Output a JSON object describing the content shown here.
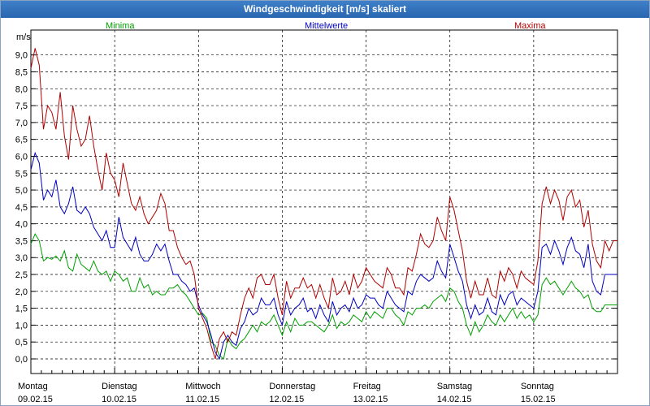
{
  "window": {
    "title": "Windgeschwindigkeit [m/s] skaliert"
  },
  "chart_data": {
    "type": "line",
    "title": "Windgeschwindigkeit [m/s] skaliert",
    "ylabel": "m/s",
    "xlabel": "",
    "ylim": [
      -0.2,
      9.5
    ],
    "xlim": [
      0,
      7
    ],
    "grid": true,
    "legend_position": "top",
    "yticks": [
      "0,0",
      "0,5",
      "1,0",
      "1,5",
      "2,0",
      "2,5",
      "3,0",
      "3,5",
      "4,0",
      "4,5",
      "5,0",
      "5,5",
      "6,0",
      "6,5",
      "7,0",
      "7,5",
      "8,0",
      "8,5",
      "9,0"
    ],
    "days": [
      {
        "name": "Montag",
        "date": "09.02.15"
      },
      {
        "name": "Dienstag",
        "date": "10.02.15"
      },
      {
        "name": "Mittwoch",
        "date": "11.02.15"
      },
      {
        "name": "Donnerstag",
        "date": "12.02.15"
      },
      {
        "name": "Freitag",
        "date": "13.02.15"
      },
      {
        "name": "Samstag",
        "date": "14.02.15"
      },
      {
        "name": "Sonntag",
        "date": "15.02.15"
      }
    ],
    "colors": {
      "minima": "#00a000",
      "mittel": "#0000c0",
      "maxima": "#b00000"
    },
    "series": [
      {
        "name": "Minima",
        "x": [
          0,
          0.05,
          0.1,
          0.15,
          0.2,
          0.25,
          0.3,
          0.35,
          0.4,
          0.45,
          0.5,
          0.55,
          0.6,
          0.65,
          0.7,
          0.75,
          0.8,
          0.85,
          0.9,
          0.95,
          1,
          1.05,
          1.1,
          1.15,
          1.2,
          1.25,
          1.3,
          1.35,
          1.4,
          1.45,
          1.5,
          1.55,
          1.6,
          1.65,
          1.7,
          1.75,
          1.8,
          1.85,
          1.9,
          1.95,
          2,
          2.05,
          2.1,
          2.15,
          2.2,
          2.25,
          2.3,
          2.35,
          2.4,
          2.45,
          2.5,
          2.55,
          2.6,
          2.65,
          2.7,
          2.75,
          2.8,
          2.85,
          2.9,
          2.95,
          3,
          3.05,
          3.1,
          3.15,
          3.2,
          3.25,
          3.3,
          3.35,
          3.4,
          3.45,
          3.5,
          3.55,
          3.6,
          3.65,
          3.7,
          3.75,
          3.8,
          3.85,
          3.9,
          3.95,
          4,
          4.05,
          4.1,
          4.15,
          4.2,
          4.25,
          4.3,
          4.35,
          4.4,
          4.45,
          4.5,
          4.55,
          4.6,
          4.65,
          4.7,
          4.75,
          4.8,
          4.85,
          4.9,
          4.95,
          5,
          5.05,
          5.1,
          5.15,
          5.2,
          5.25,
          5.3,
          5.35,
          5.4,
          5.45,
          5.5,
          5.55,
          5.6,
          5.65,
          5.7,
          5.75,
          5.8,
          5.85,
          5.9,
          5.95,
          6,
          6.05,
          6.1,
          6.15,
          6.2,
          6.25,
          6.3,
          6.35,
          6.4,
          6.45,
          6.5,
          6.55,
          6.6,
          6.65,
          6.7,
          6.75,
          6.8,
          6.85,
          6.9,
          6.95,
          7
        ],
        "values": [
          3.4,
          3.7,
          3.5,
          2.9,
          3.0,
          2.95,
          3.05,
          2.9,
          3.2,
          2.7,
          2.6,
          3.1,
          2.8,
          2.7,
          2.6,
          2.9,
          2.6,
          2.5,
          2.6,
          2.3,
          2.6,
          2.5,
          2.3,
          2.4,
          2.0,
          2.0,
          2.4,
          2.1,
          2.2,
          1.9,
          2.0,
          1.9,
          1.9,
          2.1,
          2.1,
          2.2,
          2.0,
          1.9,
          1.7,
          1.5,
          1.3,
          1.35,
          1.2,
          0.5,
          0.4,
          0.1,
          0.0,
          0.6,
          0.4,
          0.3,
          0.5,
          0.6,
          0.8,
          1.0,
          0.8,
          1.1,
          1.0,
          1.1,
          1.3,
          1.0,
          0.7,
          1.1,
          0.8,
          1.2,
          1.0,
          1.0,
          1.1,
          1.1,
          1.0,
          0.9,
          0.8,
          1.0,
          1.3,
          0.9,
          1.1,
          1.0,
          1.1,
          1.3,
          1.2,
          1.1,
          1.4,
          1.2,
          1.4,
          1.3,
          1.2,
          1.5,
          1.5,
          1.3,
          1.2,
          1.0,
          1.4,
          1.3,
          1.5,
          1.5,
          1.6,
          1.5,
          1.7,
          1.8,
          1.9,
          1.7,
          2.1,
          2.0,
          1.7,
          1.5,
          1.0,
          0.7,
          1.1,
          0.8,
          1.0,
          1.3,
          1.1,
          1.0,
          1.3,
          1.1,
          1.3,
          1.5,
          1.2,
          1.4,
          1.2,
          1.3,
          1.1,
          1.3,
          2.2,
          2.4,
          2.2,
          2.3,
          2.1,
          1.9,
          2.1,
          2.3,
          2.1,
          2.0,
          1.8,
          1.9,
          1.5,
          1.4,
          1.4,
          1.6,
          1.6,
          1.6,
          1.6
        ]
      },
      {
        "name": "Mittelwerte",
        "x": [
          0,
          0.05,
          0.1,
          0.15,
          0.2,
          0.25,
          0.3,
          0.35,
          0.4,
          0.45,
          0.5,
          0.55,
          0.6,
          0.65,
          0.7,
          0.75,
          0.8,
          0.85,
          0.9,
          0.95,
          1,
          1.05,
          1.1,
          1.15,
          1.2,
          1.25,
          1.3,
          1.35,
          1.4,
          1.45,
          1.5,
          1.55,
          1.6,
          1.65,
          1.7,
          1.75,
          1.8,
          1.85,
          1.9,
          1.95,
          2,
          2.05,
          2.1,
          2.15,
          2.2,
          2.25,
          2.3,
          2.35,
          2.4,
          2.45,
          2.5,
          2.55,
          2.6,
          2.65,
          2.7,
          2.75,
          2.8,
          2.85,
          2.9,
          2.95,
          3,
          3.05,
          3.1,
          3.15,
          3.2,
          3.25,
          3.3,
          3.35,
          3.4,
          3.45,
          3.5,
          3.55,
          3.6,
          3.65,
          3.7,
          3.75,
          3.8,
          3.85,
          3.9,
          3.95,
          4,
          4.05,
          4.1,
          4.15,
          4.2,
          4.25,
          4.3,
          4.35,
          4.4,
          4.45,
          4.5,
          4.55,
          4.6,
          4.65,
          4.7,
          4.75,
          4.8,
          4.85,
          4.9,
          4.95,
          5,
          5.05,
          5.1,
          5.15,
          5.2,
          5.25,
          5.3,
          5.35,
          5.4,
          5.45,
          5.5,
          5.55,
          5.6,
          5.65,
          5.7,
          5.75,
          5.8,
          5.85,
          5.9,
          5.95,
          6,
          6.05,
          6.1,
          6.15,
          6.2,
          6.25,
          6.3,
          6.35,
          6.4,
          6.45,
          6.5,
          6.55,
          6.6,
          6.65,
          6.7,
          6.75,
          6.8,
          6.85,
          6.9,
          6.95,
          7
        ],
        "values": [
          5.6,
          6.1,
          5.8,
          4.7,
          5.0,
          4.8,
          5.3,
          4.5,
          4.3,
          4.6,
          5.1,
          4.4,
          4.3,
          4.5,
          4.3,
          3.9,
          3.7,
          3.5,
          3.8,
          3.3,
          3.3,
          4.2,
          3.6,
          3.4,
          3.2,
          3.6,
          3.1,
          2.9,
          2.9,
          3.1,
          3.4,
          3.2,
          3.4,
          2.9,
          2.5,
          2.5,
          2.3,
          2.2,
          2.0,
          2.1,
          1.6,
          1.3,
          1.1,
          0.7,
          0.2,
          0.0,
          0.5,
          0.7,
          0.5,
          0.4,
          0.9,
          1.1,
          1.5,
          1.3,
          1.4,
          1.8,
          1.6,
          1.6,
          1.8,
          1.3,
          1.0,
          1.7,
          1.3,
          1.5,
          1.6,
          1.8,
          1.4,
          1.5,
          1.2,
          1.6,
          1.3,
          1.1,
          1.7,
          1.3,
          1.5,
          1.6,
          1.4,
          1.8,
          1.5,
          1.6,
          1.9,
          1.8,
          1.8,
          1.6,
          1.5,
          2.0,
          1.8,
          1.6,
          1.5,
          1.4,
          2.0,
          1.9,
          2.3,
          2.5,
          2.4,
          2.3,
          2.4,
          2.9,
          2.6,
          2.4,
          3.4,
          3.0,
          2.6,
          2.3,
          1.6,
          1.2,
          1.6,
          1.3,
          1.4,
          1.8,
          1.4,
          1.3,
          1.9,
          1.6,
          1.9,
          2.0,
          1.6,
          1.8,
          1.7,
          1.6,
          1.5,
          2.0,
          3.3,
          3.4,
          3.1,
          3.5,
          3.2,
          2.8,
          3.3,
          3.6,
          3.2,
          3.1,
          2.7,
          3.4,
          2.3,
          2.0,
          1.9,
          2.5,
          2.5,
          2.5,
          2.5
        ]
      },
      {
        "name": "Maxima",
        "x": [
          0,
          0.05,
          0.1,
          0.15,
          0.2,
          0.25,
          0.3,
          0.35,
          0.4,
          0.45,
          0.5,
          0.55,
          0.6,
          0.65,
          0.7,
          0.75,
          0.8,
          0.85,
          0.9,
          0.95,
          1,
          1.05,
          1.1,
          1.15,
          1.2,
          1.25,
          1.3,
          1.35,
          1.4,
          1.45,
          1.5,
          1.55,
          1.6,
          1.65,
          1.7,
          1.75,
          1.8,
          1.85,
          1.9,
          1.95,
          2,
          2.05,
          2.1,
          2.15,
          2.2,
          2.25,
          2.3,
          2.35,
          2.4,
          2.45,
          2.5,
          2.55,
          2.6,
          2.65,
          2.7,
          2.75,
          2.8,
          2.85,
          2.9,
          2.95,
          3,
          3.05,
          3.1,
          3.15,
          3.2,
          3.25,
          3.3,
          3.35,
          3.4,
          3.45,
          3.5,
          3.55,
          3.6,
          3.65,
          3.7,
          3.75,
          3.8,
          3.85,
          3.9,
          3.95,
          4,
          4.05,
          4.1,
          4.15,
          4.2,
          4.25,
          4.3,
          4.35,
          4.4,
          4.45,
          4.5,
          4.55,
          4.6,
          4.65,
          4.7,
          4.75,
          4.8,
          4.85,
          4.9,
          4.95,
          5,
          5.05,
          5.1,
          5.15,
          5.2,
          5.25,
          5.3,
          5.35,
          5.4,
          5.45,
          5.5,
          5.55,
          5.6,
          5.65,
          5.7,
          5.75,
          5.8,
          5.85,
          5.9,
          5.95,
          6,
          6.05,
          6.1,
          6.15,
          6.2,
          6.25,
          6.3,
          6.35,
          6.4,
          6.45,
          6.5,
          6.55,
          6.6,
          6.65,
          6.7,
          6.75,
          6.8,
          6.85,
          6.9,
          6.95,
          7
        ],
        "values": [
          8.6,
          9.2,
          8.7,
          6.8,
          7.5,
          7.3,
          6.8,
          7.9,
          6.6,
          5.9,
          7.5,
          6.8,
          6.3,
          6.5,
          7.2,
          6.3,
          5.6,
          5.0,
          6.1,
          5.5,
          5.3,
          4.8,
          5.8,
          5.2,
          4.6,
          4.4,
          4.8,
          4.3,
          4.0,
          4.2,
          4.4,
          4.9,
          4.6,
          3.8,
          3.8,
          3.3,
          3.0,
          2.8,
          2.9,
          2.5,
          1.5,
          1.2,
          0.9,
          0.4,
          0.0,
          0.6,
          0.8,
          0.5,
          0.8,
          0.7,
          1.3,
          1.8,
          2.1,
          1.8,
          2.4,
          2.5,
          2.2,
          2.2,
          2.5,
          1.8,
          1.3,
          2.3,
          1.8,
          2.1,
          2.1,
          2.4,
          2.1,
          2.2,
          1.8,
          2.2,
          1.8,
          1.5,
          2.4,
          1.9,
          2.0,
          2.3,
          1.9,
          2.5,
          2.1,
          2.3,
          2.7,
          2.5,
          2.3,
          2.2,
          2.1,
          2.7,
          2.5,
          2.1,
          2.1,
          1.9,
          2.7,
          2.6,
          3.1,
          3.7,
          3.4,
          3.3,
          3.5,
          4.2,
          3.8,
          3.5,
          4.8,
          4.4,
          3.8,
          3.2,
          2.3,
          1.8,
          2.3,
          1.9,
          1.9,
          2.4,
          1.9,
          1.8,
          2.6,
          2.3,
          2.7,
          2.5,
          2.1,
          2.6,
          2.4,
          2.3,
          2.2,
          2.9,
          4.6,
          5.1,
          4.6,
          5.0,
          4.7,
          4.1,
          4.8,
          5.0,
          4.5,
          4.7,
          3.9,
          4.4,
          3.4,
          2.9,
          2.7,
          3.5,
          3.2,
          3.5,
          3.5
        ]
      }
    ]
  }
}
